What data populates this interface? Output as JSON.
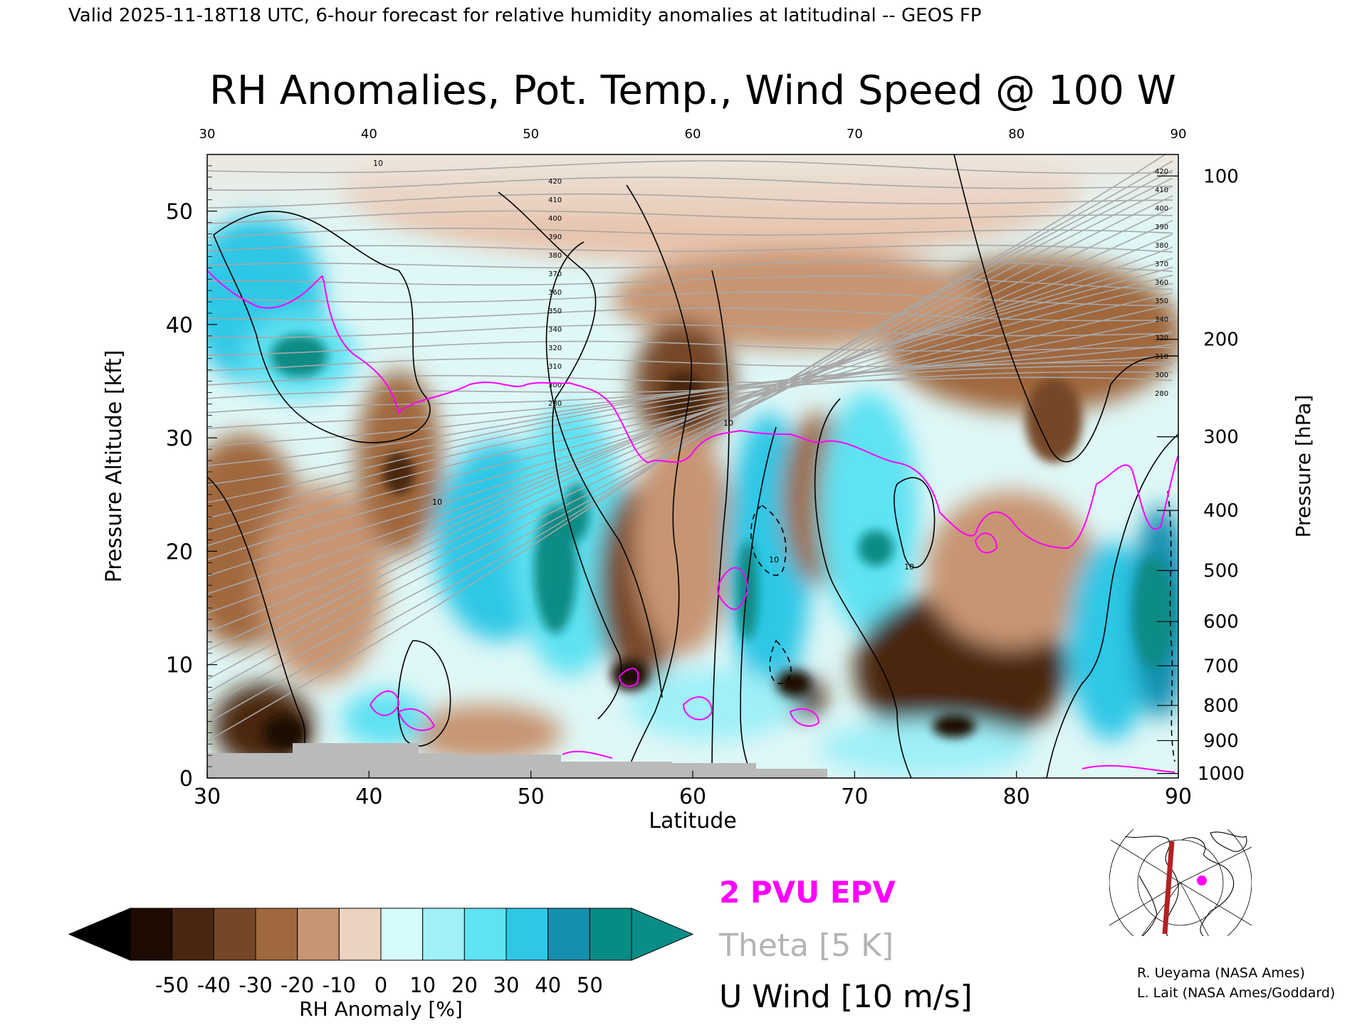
{
  "header": {
    "valid_line": "Valid 2025-11-18T18 UTC, 6-hour forecast for relative humidity anomalies at latitudinal -- GEOS FP",
    "title": "RH Anomalies, Pot. Temp., Wind Speed @ 100 W"
  },
  "chart_data": {
    "type": "heatmap",
    "title": "RH Anomalies, Pot. Temp., Wind Speed @ 100 W",
    "xlabel": "Latitude",
    "ylabel": "Pressure Altitude [kft]",
    "y2label": "Pressure [hPa]",
    "xlim": [
      30,
      90
    ],
    "ylim": [
      0,
      55
    ],
    "x_ticks": [
      30,
      40,
      50,
      60,
      70,
      80,
      90
    ],
    "x_ticks_top": [
      30,
      40,
      50,
      60,
      70,
      80,
      90
    ],
    "y_ticks": [
      0,
      10,
      20,
      30,
      40,
      50
    ],
    "pressure_ticks": [
      {
        "label": "100",
        "kft": 53.1
      },
      {
        "label": "200",
        "kft": 38.7
      },
      {
        "label": "300",
        "kft": 30.1
      },
      {
        "label": "400",
        "kft": 23.6
      },
      {
        "label": "500",
        "kft": 18.3
      },
      {
        "label": "600",
        "kft": 13.8
      },
      {
        "label": "700",
        "kft": 9.9
      },
      {
        "label": "800",
        "kft": 6.4
      },
      {
        "label": "900",
        "kft": 3.3
      },
      {
        "label": "1000",
        "kft": 0.4
      }
    ],
    "colorbar": {
      "label": "RH Anomaly [%]",
      "tick_labels": [
        "-50",
        "-40",
        "-30",
        "-20",
        "-10",
        "0",
        "10",
        "20",
        "30",
        "40",
        "50"
      ],
      "colors": [
        "#1e0c03",
        "#4a2510",
        "#764628",
        "#a0683e",
        "#c79572",
        "#ead3c1",
        "#d6fbfd",
        "#9ff0f8",
        "#5fe2f2",
        "#2fc7e6",
        "#158fb0",
        "#078b85"
      ],
      "underflow_color": "#000000",
      "overflow_color": "#0a8d86"
    },
    "theta_labels": [
      420,
      410,
      400,
      390,
      380,
      370,
      360,
      350,
      340,
      320,
      310,
      300,
      280
    ],
    "wind_label": "10",
    "epv_color": "#ff00ff",
    "theta_color": "#a8a8a8"
  },
  "legend": {
    "epv": "2 PVU EPV",
    "theta": "Theta [5 K]",
    "wind": "U Wind [10 m/s]"
  },
  "credits": {
    "line1": "R. Ueyama (NASA Ames)",
    "line2": "L. Lait (NASA Ames/Goddard)"
  },
  "inset_map": {
    "section_color": "#b22222",
    "marker_color": "#ff00ff"
  }
}
